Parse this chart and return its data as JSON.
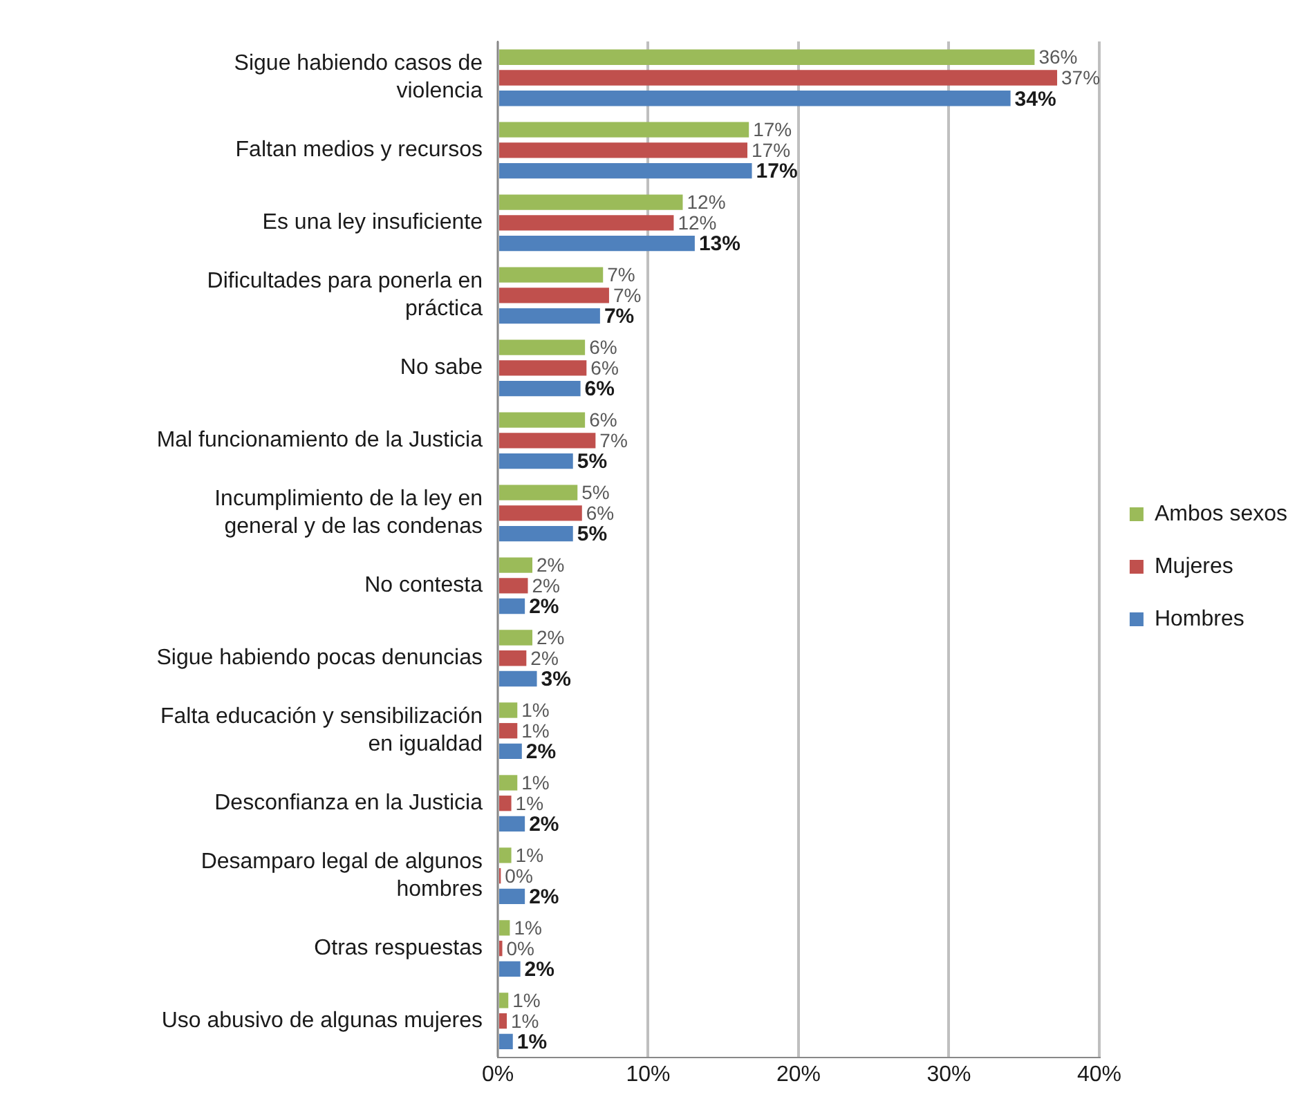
{
  "chart_data": {
    "type": "bar",
    "orientation": "horizontal",
    "categories": [
      "Sigue habiendo casos de\nviolencia",
      "Faltan medios y recursos",
      "Es una ley insuficiente",
      "Dificultades para ponerla en\npráctica",
      "No sabe",
      "Mal funcionamiento de la Justicia",
      "Incumplimiento de la ley en\ngeneral y de las condenas",
      "No contesta",
      "Sigue habiendo pocas denuncias",
      "Falta educación y sensibilización\nen igualdad",
      "Desconfianza en la Justicia",
      "Desamparo legal de algunos\nhombres",
      "Otras respuestas",
      "Uso abusivo de algunas mujeres"
    ],
    "series": [
      {
        "name": "Ambos sexos",
        "color": "#9bbb59",
        "values": [
          35.7,
          16.7,
          12.3,
          7.0,
          5.8,
          5.8,
          5.3,
          2.3,
          2.3,
          1.3,
          1.3,
          0.9,
          0.8,
          0.7
        ],
        "value_labels": [
          "36%",
          "17%",
          "12%",
          "7%",
          "6%",
          "6%",
          "5%",
          "2%",
          "2%",
          "1%",
          "1%",
          "1%",
          "1%",
          "1%"
        ]
      },
      {
        "name": "Mujeres",
        "color": "#c0504d",
        "values": [
          37.2,
          16.6,
          11.7,
          7.4,
          5.9,
          6.5,
          5.6,
          2.0,
          1.9,
          1.3,
          0.9,
          0.2,
          0.3,
          0.6
        ],
        "value_labels": [
          "37%",
          "17%",
          "12%",
          "7%",
          "6%",
          "7%",
          "6%",
          "2%",
          "2%",
          "1%",
          "1%",
          "0%",
          "0%",
          "1%"
        ]
      },
      {
        "name": "Hombres",
        "color": "#4f81bd",
        "values": [
          34.1,
          16.9,
          13.1,
          6.8,
          5.5,
          5.0,
          5.0,
          1.8,
          2.6,
          1.6,
          1.8,
          1.8,
          1.5,
          1.0
        ],
        "value_labels": [
          "34%",
          "17%",
          "13%",
          "7%",
          "6%",
          "5%",
          "5%",
          "2%",
          "3%",
          "2%",
          "2%",
          "2%",
          "2%",
          "1%"
        ]
      }
    ],
    "xlim": [
      0,
      40
    ],
    "xticks": [
      {
        "value": 0,
        "label": "0%"
      },
      {
        "value": 10,
        "label": "10%"
      },
      {
        "value": 20,
        "label": "20%"
      },
      {
        "value": 30,
        "label": "30%"
      },
      {
        "value": 40,
        "label": "40%"
      }
    ],
    "grid": "x",
    "legend": "right"
  }
}
